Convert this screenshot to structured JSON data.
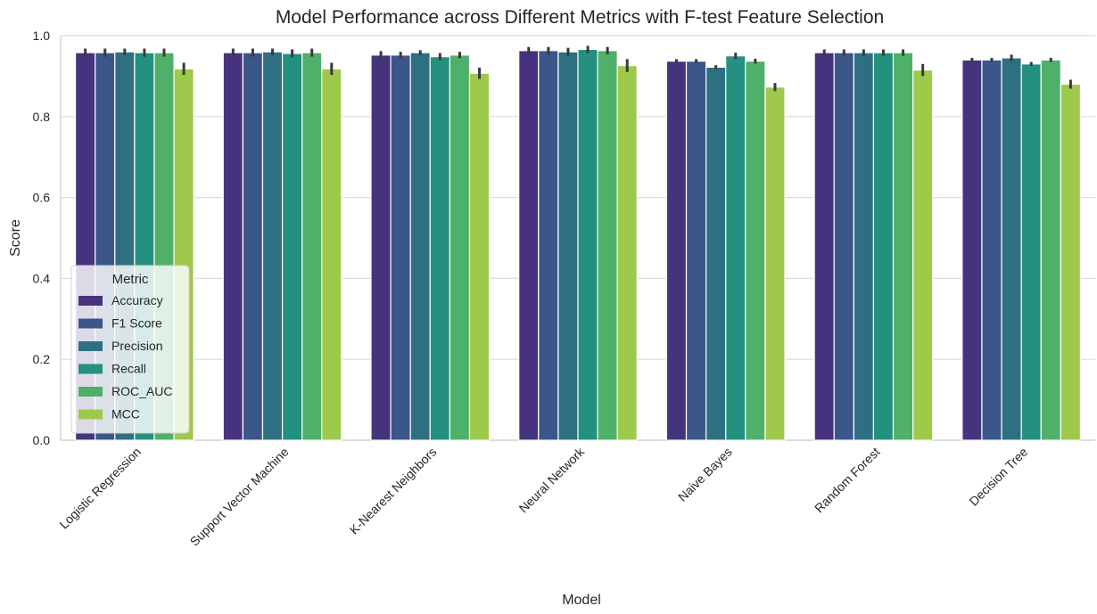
{
  "chart_data": {
    "type": "bar",
    "title": "Model Performance across Different Metrics with F-test Feature Selection",
    "x_label": "Model",
    "y_label": "Score",
    "legend_title": "Metric",
    "legend_position": "lower left",
    "grid": true,
    "categories": [
      "Logistic Regression",
      "Support Vector Machine",
      "K-Nearest Neighbors",
      "Neural Network",
      "Naive Bayes",
      "Random Forest",
      "Decision Tree"
    ],
    "series": [
      {
        "name": "Accuracy",
        "color": "#46337e",
        "values": [
          0.958,
          0.958,
          0.952,
          0.963,
          0.937,
          0.958,
          0.94
        ],
        "errors": [
          0.01,
          0.01,
          0.01,
          0.009,
          0.005,
          0.008,
          0.005
        ]
      },
      {
        "name": "F1 Score",
        "color": "#3b5688",
        "values": [
          0.958,
          0.958,
          0.952,
          0.963,
          0.937,
          0.958,
          0.94
        ],
        "errors": [
          0.01,
          0.01,
          0.008,
          0.009,
          0.005,
          0.008,
          0.005
        ]
      },
      {
        "name": "Precision",
        "color": "#2f6f82",
        "values": [
          0.96,
          0.96,
          0.958,
          0.96,
          0.922,
          0.958,
          0.945
        ],
        "errors": [
          0.008,
          0.008,
          0.006,
          0.01,
          0.005,
          0.008,
          0.008
        ]
      },
      {
        "name": "Recall",
        "color": "#24907f",
        "values": [
          0.958,
          0.956,
          0.948,
          0.966,
          0.95,
          0.958,
          0.93
        ],
        "errors": [
          0.01,
          0.01,
          0.009,
          0.009,
          0.008,
          0.008,
          0.005
        ]
      },
      {
        "name": "ROC_AUC",
        "color": "#4fb06a",
        "values": [
          0.958,
          0.958,
          0.952,
          0.963,
          0.937,
          0.958,
          0.94
        ],
        "errors": [
          0.01,
          0.01,
          0.008,
          0.009,
          0.006,
          0.008,
          0.005
        ]
      },
      {
        "name": "MCC",
        "color": "#9ec94a",
        "values": [
          0.918,
          0.918,
          0.907,
          0.926,
          0.873,
          0.915,
          0.88
        ],
        "errors": [
          0.015,
          0.015,
          0.014,
          0.016,
          0.01,
          0.015,
          0.011
        ]
      }
    ],
    "ylim": [
      0,
      1
    ],
    "yticks": [
      {
        "value": 0,
        "label": "0.0"
      },
      0.2,
      0.4,
      0.6,
      0.8,
      {
        "value": 1,
        "label": "1.0"
      }
    ]
  }
}
